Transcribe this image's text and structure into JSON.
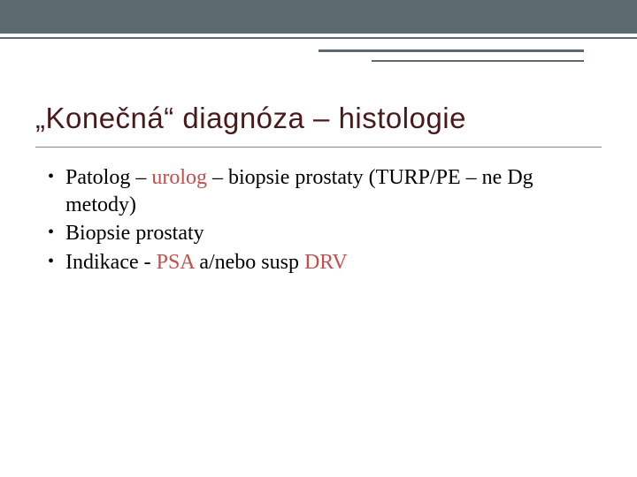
{
  "title": "„Konečná“ diagnóza – histologie",
  "bullets": [
    {
      "pre": "Patolog – ",
      "hl1": "urolog",
      "mid": " – biopsie prostaty (TURP/PE – ne Dg metody)",
      "hl2": "",
      "post": ""
    },
    {
      "pre": "Biopsie prostaty",
      "hl1": "",
      "mid": "",
      "hl2": "",
      "post": ""
    },
    {
      "pre": "Indikace -  ",
      "hl1": "PSA",
      "mid": " a/nebo susp ",
      "hl2": "DRV",
      "post": ""
    }
  ],
  "colors": {
    "band": "#5a6a6e",
    "title": "#4a1a1a",
    "highlight": "#c0504d",
    "body": "#000000",
    "background": "#ffffff"
  },
  "typography": {
    "title_family": "Verdana",
    "title_size_pt": 33,
    "body_family": "Georgia",
    "body_size_pt": 24
  }
}
